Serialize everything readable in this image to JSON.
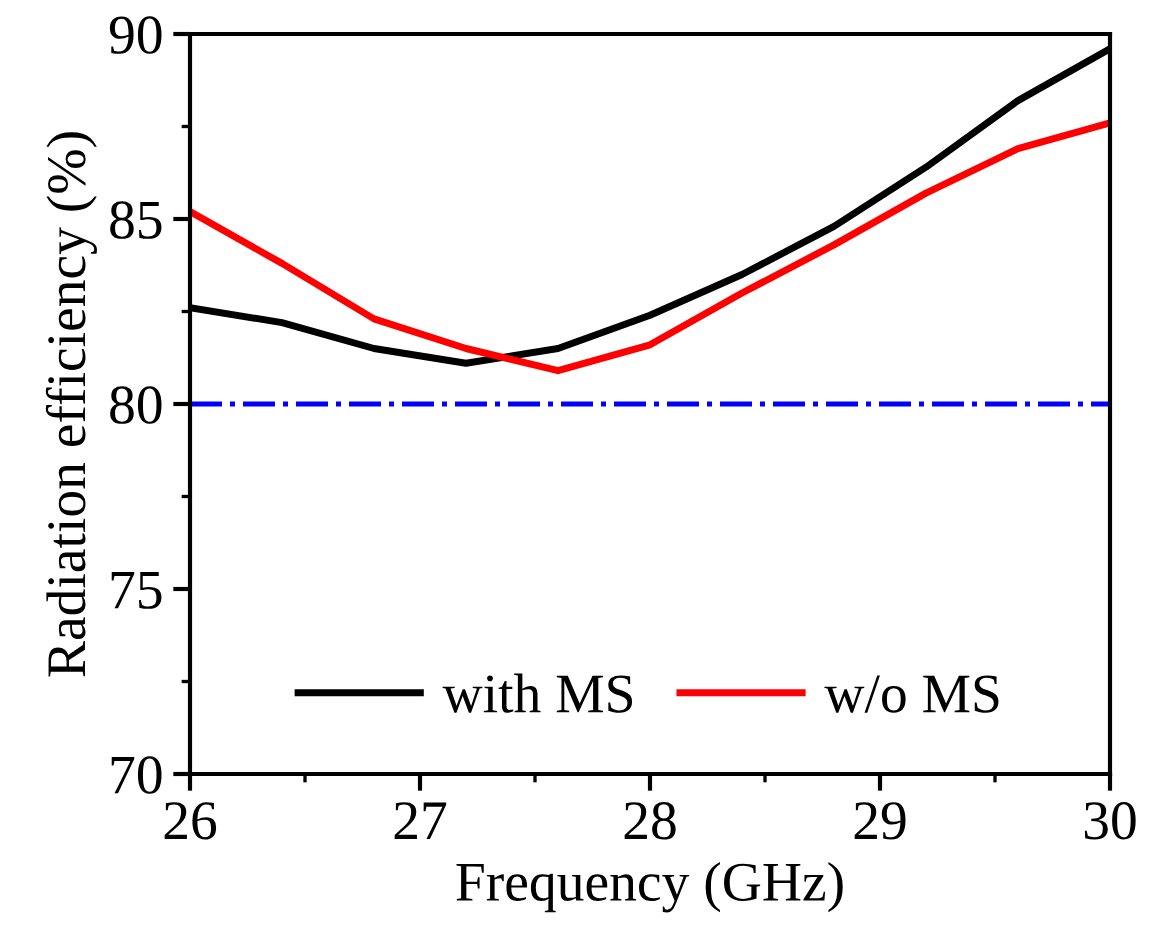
{
  "chart_data": {
    "type": "line",
    "xlabel": "Frequency (GHz)",
    "ylabel": "Radiation efficiency (%)",
    "x": [
      26,
      26.4,
      26.8,
      27.2,
      27.6,
      28,
      28.4,
      28.8,
      29.2,
      29.6,
      30
    ],
    "series": [
      {
        "name": "with MS",
        "color": "#000000",
        "values": [
          82.6,
          82.2,
          81.5,
          81.1,
          81.5,
          82.4,
          83.5,
          84.8,
          86.4,
          88.2,
          89.6
        ]
      },
      {
        "name": "w/o MS",
        "color": "#ff0000",
        "values": [
          85.2,
          83.8,
          82.3,
          81.5,
          80.9,
          81.6,
          83.0,
          84.3,
          85.7,
          86.9,
          87.6
        ]
      }
    ],
    "ref_lines": [
      {
        "axis": "y",
        "value": 80,
        "label": null,
        "color": "#0000ff",
        "line_style": "dashdot"
      }
    ],
    "xlim": [
      26,
      30
    ],
    "xticks": [
      26,
      27,
      28,
      29,
      30
    ],
    "ylim": [
      70,
      90
    ],
    "yticks": [
      70,
      75,
      80,
      85,
      90
    ],
    "grid": false,
    "legend": "bottom",
    "marker": "none",
    "line_style": "solid"
  }
}
